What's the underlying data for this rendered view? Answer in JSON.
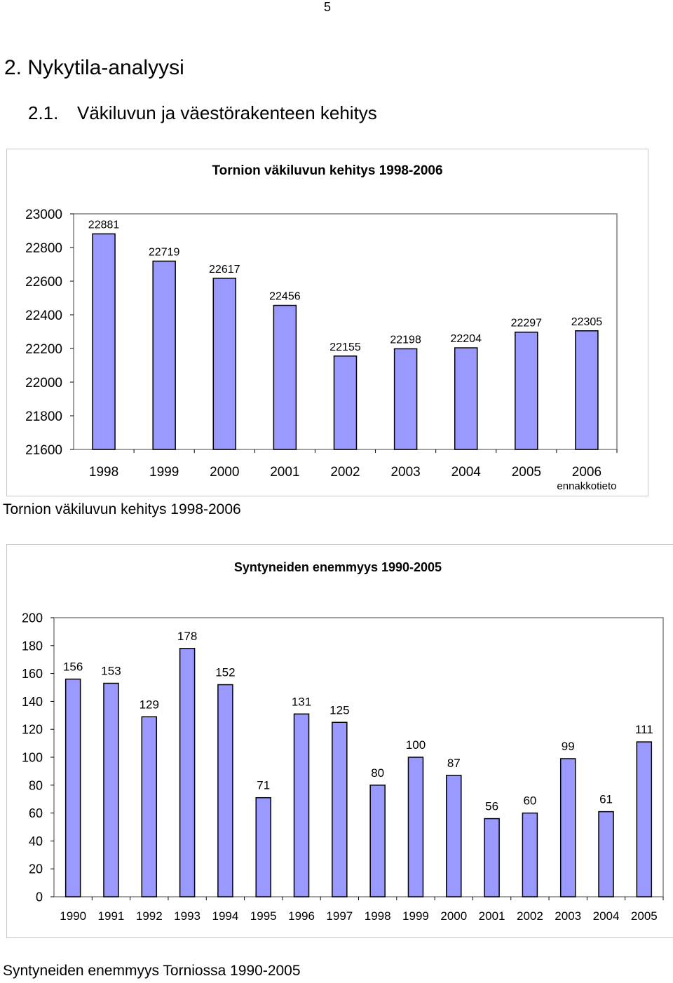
{
  "page": {
    "number": "5",
    "heading1": "2. Nykytila-analyysi",
    "heading2_num": "2.1.",
    "heading2_text": "Väkiluvun ja väestörakenteen kehitys",
    "caption1": "Tornion väkiluvun kehitys 1998-2006",
    "caption2": "Syntyneiden enemmyys Torniossa 1990-2005"
  },
  "colors": {
    "bar_fill": "#9999ff",
    "bar_stroke": "#000000",
    "plot_border": "#808080",
    "frame_border": "#c8c8c8"
  },
  "chart_data": [
    {
      "type": "bar",
      "title": "Tornion väkiluvun kehitys 1998-2006",
      "categories": [
        "1998",
        "1999",
        "2000",
        "2001",
        "2002",
        "2003",
        "2004",
        "2005",
        "2006"
      ],
      "category_sublabels": [
        "",
        "",
        "",
        "",
        "",
        "",
        "",
        "",
        "ennakkotieto"
      ],
      "values": [
        22881,
        22719,
        22617,
        22456,
        22155,
        22198,
        22204,
        22297,
        22305
      ],
      "data_labels": [
        "22881",
        "22719",
        "22617",
        "22456",
        "22155",
        "22198",
        "22204",
        "22297",
        "22305"
      ],
      "ylim": [
        21600,
        23000
      ],
      "yticks": [
        "21600",
        "21800",
        "22000",
        "22200",
        "22400",
        "22600",
        "22800",
        "23000"
      ],
      "grid": false,
      "legend": "none",
      "xlabel": "",
      "ylabel": ""
    },
    {
      "type": "bar",
      "title": "Syntyneiden enemmyys 1990-2005",
      "categories": [
        "1990",
        "1991",
        "1992",
        "1993",
        "1994",
        "1995",
        "1996",
        "1997",
        "1998",
        "1999",
        "2000",
        "2001",
        "2002",
        "2003",
        "2004",
        "2005"
      ],
      "values": [
        156,
        153,
        129,
        178,
        152,
        71,
        131,
        125,
        80,
        100,
        87,
        56,
        60,
        99,
        61,
        111
      ],
      "data_labels": [
        "156",
        "153",
        "129",
        "178",
        "152",
        "71",
        "131",
        "125",
        "80",
        "100",
        "87",
        "56",
        "60",
        "99",
        "61",
        "111"
      ],
      "ylim": [
        0,
        200
      ],
      "yticks": [
        "0",
        "20",
        "40",
        "60",
        "80",
        "100",
        "120",
        "140",
        "160",
        "180",
        "200"
      ],
      "grid": false,
      "legend": "none",
      "xlabel": "",
      "ylabel": ""
    }
  ]
}
